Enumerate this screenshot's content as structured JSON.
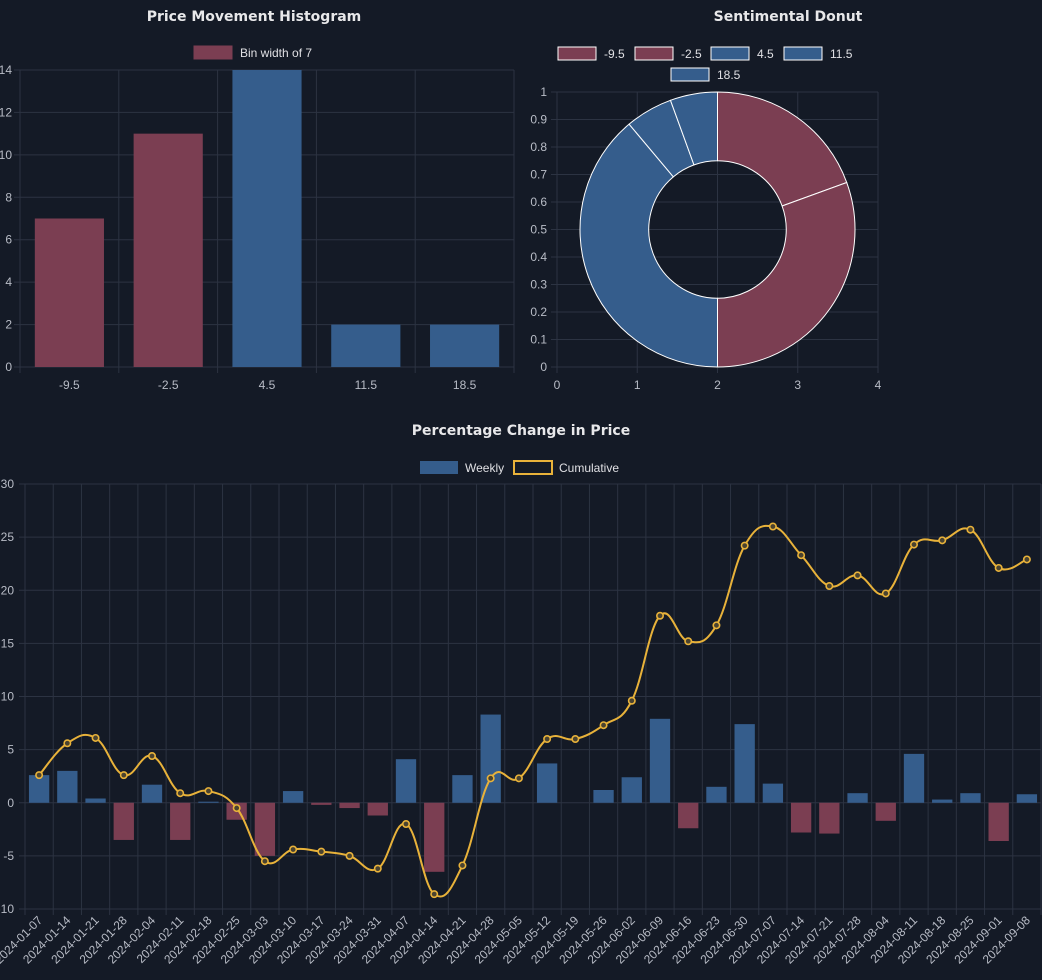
{
  "histogram": {
    "title": "Price Movement Histogram",
    "legend_label": "Bin width of 7",
    "colors": {
      "negative": "#7b3e52",
      "positive": "#355d8c",
      "grid": "#2c3342"
    },
    "chart_data": {
      "type": "bar",
      "title": "Price Movement Histogram",
      "categories": [
        "-9.5",
        "-2.5",
        "4.5",
        "11.5",
        "18.5"
      ],
      "series": [
        {
          "name": "Bin width of 7",
          "values": [
            7,
            11,
            14,
            2,
            2
          ]
        }
      ],
      "ylim": [
        0,
        14
      ],
      "yticks": [
        "0",
        "2",
        "4",
        "6",
        "8",
        "10",
        "12",
        "14"
      ],
      "ytick_values": [
        0,
        2,
        4,
        6,
        8,
        10,
        12,
        14
      ],
      "grid": true,
      "legend": "top-center"
    }
  },
  "donut": {
    "title": "Sentimental Donut",
    "colors": {
      "negative": "#7b3e52",
      "positive": "#355d8c",
      "border": "#ffffff"
    },
    "chart_data": {
      "type": "pie",
      "title": "Sentimental Donut",
      "labels": [
        "-9.5",
        "-2.5",
        "4.5",
        "11.5",
        "18.5"
      ],
      "values": [
        7,
        11,
        14,
        2,
        2
      ],
      "xticks": [
        "0",
        "1",
        "2",
        "3",
        "4"
      ],
      "xtick_values": [
        0,
        1,
        2,
        3,
        4
      ],
      "yticks": [
        "0",
        "0.1",
        "0.2",
        "0.3",
        "0.4",
        "0.5",
        "0.6",
        "0.7",
        "0.8",
        "0.9",
        "1"
      ],
      "ytick_values": [
        0,
        0.1,
        0.2,
        0.3,
        0.4,
        0.5,
        0.6,
        0.7,
        0.8,
        0.9,
        1
      ],
      "grid": true,
      "legend": "top-center"
    }
  },
  "combo": {
    "title": "Percentage Change in Price",
    "colors": {
      "bar_positive": "#355d8c",
      "bar_negative": "#7b3e52",
      "line": "#e8b23a"
    },
    "chart_data": {
      "type": "bar",
      "title": "Percentage Change in Price",
      "x": [
        "2024-01-07",
        "2024-01-14",
        "2024-01-21",
        "2024-01-28",
        "2024-02-04",
        "2024-02-11",
        "2024-02-18",
        "2024-02-25",
        "2024-03-03",
        "2024-03-10",
        "2024-03-17",
        "2024-03-24",
        "2024-03-31",
        "2024-04-07",
        "2024-04-14",
        "2024-04-21",
        "2024-04-28",
        "2024-05-05",
        "2024-05-12",
        "2024-05-19",
        "2024-05-26",
        "2024-06-02",
        "2024-06-09",
        "2024-06-16",
        "2024-06-23",
        "2024-06-30",
        "2024-07-07",
        "2024-07-14",
        "2024-07-21",
        "2024-07-28",
        "2024-08-04",
        "2024-08-11",
        "2024-08-18",
        "2024-08-25",
        "2024-09-01",
        "2024-09-08"
      ],
      "series": [
        {
          "name": "Weekly",
          "type": "bar",
          "values": [
            2.6,
            3.0,
            0.4,
            -3.5,
            1.7,
            -3.5,
            0.1,
            -1.6,
            -5.0,
            1.1,
            -0.2,
            -0.5,
            -1.2,
            4.1,
            -6.5,
            2.6,
            8.3,
            0,
            3.7,
            0,
            1.2,
            2.4,
            7.9,
            -2.4,
            1.5,
            7.4,
            1.8,
            -2.8,
            -2.9,
            0.9,
            -1.7,
            4.6,
            0.3,
            0.9,
            -3.6,
            0.8
          ]
        },
        {
          "name": "Cumulative",
          "type": "line",
          "values": [
            2.6,
            5.6,
            6.1,
            2.6,
            4.4,
            0.9,
            1.1,
            -0.5,
            -5.5,
            -4.4,
            -4.6,
            -5.0,
            -6.2,
            -2.0,
            -8.6,
            -5.9,
            2.3,
            2.3,
            6.0,
            6.0,
            7.3,
            9.6,
            17.6,
            15.2,
            16.7,
            24.2,
            26.0,
            23.3,
            20.4,
            21.4,
            19.7,
            24.3,
            24.7,
            25.7,
            22.1,
            22.9
          ]
        }
      ],
      "ylim": [
        -10,
        30
      ],
      "yticks": [
        "-10",
        "-5",
        "0",
        "5",
        "10",
        "15",
        "20",
        "25",
        "30"
      ],
      "ytick_values": [
        -10,
        -5,
        0,
        5,
        10,
        15,
        20,
        25,
        30
      ],
      "grid": true,
      "legend": "top-center"
    }
  }
}
